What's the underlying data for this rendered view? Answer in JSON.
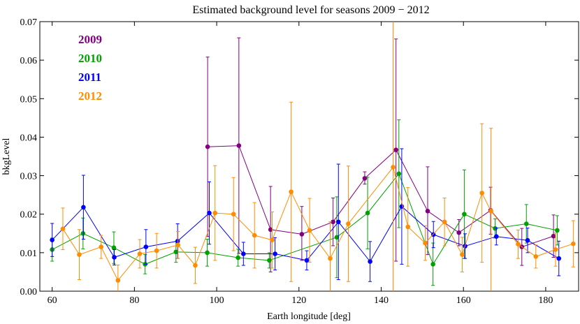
{
  "chart_data": {
    "type": "scatter",
    "title": "Estimated background level for seasons 2009 − 2012",
    "xlabel": "Earth longitude [deg]",
    "ylabel": "bkgLevel",
    "xlim": [
      57,
      188
    ],
    "ylim": [
      0,
      0.07
    ],
    "xticks": [
      60,
      80,
      100,
      120,
      140,
      160,
      180
    ],
    "yticks": [
      0.0,
      0.01,
      0.02,
      0.03,
      0.04,
      0.05,
      0.06,
      0.07
    ],
    "ytick_labels": [
      "0.00",
      "0.01",
      "0.02",
      "0.03",
      "0.04",
      "0.05",
      "0.06",
      "0.07"
    ],
    "grid": false,
    "legend_position": "top-left",
    "series": [
      {
        "name": "2009",
        "color": "#800080",
        "points": [
          {
            "x": 97.8,
            "y": 0.0375,
            "lo": 0.0142,
            "hi": 0.0608
          },
          {
            "x": 105.4,
            "y": 0.0378,
            "lo": 0.0098,
            "hi": 0.0658
          },
          {
            "x": 113.1,
            "y": 0.016,
            "lo": 0.005,
            "hi": 0.0272
          },
          {
            "x": 120.7,
            "y": 0.0148,
            "lo": 0.008,
            "hi": 0.022
          },
          {
            "x": 128.3,
            "y": 0.018,
            "lo": 0.0118,
            "hi": 0.0242
          },
          {
            "x": 136.0,
            "y": 0.0293,
            "lo": 0.0278,
            "hi": 0.031
          },
          {
            "x": 143.6,
            "y": 0.0367,
            "lo": 0.0078,
            "hi": 0.0655
          },
          {
            "x": 151.3,
            "y": 0.0208,
            "lo": 0.0095,
            "hi": 0.0323
          },
          {
            "x": 158.9,
            "y": 0.0152,
            "lo": 0.0118,
            "hi": 0.0186
          },
          {
            "x": 166.6,
            "y": 0.021,
            "lo": 0.0148,
            "hi": 0.027
          },
          {
            "x": 174.2,
            "y": 0.0115,
            "lo": 0.0067,
            "hi": 0.0163
          },
          {
            "x": 181.9,
            "y": 0.0143,
            "lo": 0.0088,
            "hi": 0.0198
          }
        ]
      },
      {
        "name": "2010",
        "color": "#00a000",
        "points": [
          {
            "x": 60.0,
            "y": 0.0108,
            "lo": 0.0078,
            "hi": 0.0138
          },
          {
            "x": 67.5,
            "y": 0.015,
            "lo": 0.011,
            "hi": 0.019
          },
          {
            "x": 75.0,
            "y": 0.0113,
            "lo": 0.0072,
            "hi": 0.0154
          },
          {
            "x": 82.6,
            "y": 0.007,
            "lo": 0.0045,
            "hi": 0.0095
          },
          {
            "x": 90.1,
            "y": 0.0102,
            "lo": 0.0075,
            "hi": 0.0129
          },
          {
            "x": 97.7,
            "y": 0.01,
            "lo": 0.0065,
            "hi": 0.0135
          },
          {
            "x": 105.2,
            "y": 0.0087,
            "lo": 0.0065,
            "hi": 0.0109
          },
          {
            "x": 112.8,
            "y": 0.008,
            "lo": 0.006,
            "hi": 0.01
          },
          {
            "x": 129.2,
            "y": 0.014,
            "lo": 0.0035,
            "hi": 0.0245
          },
          {
            "x": 136.7,
            "y": 0.0203,
            "lo": 0.011,
            "hi": 0.0296
          },
          {
            "x": 144.3,
            "y": 0.0305,
            "lo": 0.0165,
            "hi": 0.0445
          },
          {
            "x": 152.6,
            "y": 0.007,
            "lo": 0.0015,
            "hi": 0.0125
          },
          {
            "x": 160.2,
            "y": 0.02,
            "lo": 0.0085,
            "hi": 0.0315
          },
          {
            "x": 167.7,
            "y": 0.0163,
            "lo": 0.0138,
            "hi": 0.0188
          },
          {
            "x": 175.3,
            "y": 0.0175,
            "lo": 0.0125,
            "hi": 0.0225
          },
          {
            "x": 182.8,
            "y": 0.0158,
            "lo": 0.012,
            "hi": 0.0196
          }
        ]
      },
      {
        "name": "2011",
        "color": "#0000ff",
        "points": [
          {
            "x": 60.0,
            "y": 0.0133,
            "lo": 0.009,
            "hi": 0.0176
          },
          {
            "x": 67.6,
            "y": 0.0218,
            "lo": 0.0135,
            "hi": 0.0301
          },
          {
            "x": 75.1,
            "y": 0.0088,
            "lo": 0.0068,
            "hi": 0.0108
          },
          {
            "x": 82.8,
            "y": 0.0115,
            "lo": 0.007,
            "hi": 0.016
          },
          {
            "x": 90.5,
            "y": 0.013,
            "lo": 0.0085,
            "hi": 0.0175
          },
          {
            "x": 98.2,
            "y": 0.0203,
            "lo": 0.0122,
            "hi": 0.0284
          },
          {
            "x": 106.5,
            "y": 0.0097,
            "lo": 0.0067,
            "hi": 0.0127
          },
          {
            "x": 114.2,
            "y": 0.0097,
            "lo": 0.0055,
            "hi": 0.0139
          },
          {
            "x": 121.9,
            "y": 0.008,
            "lo": 0.0055,
            "hi": 0.0105
          },
          {
            "x": 129.6,
            "y": 0.018,
            "lo": 0.003,
            "hi": 0.033
          },
          {
            "x": 137.3,
            "y": 0.0077,
            "lo": 0.0025,
            "hi": 0.0129
          },
          {
            "x": 145.0,
            "y": 0.022,
            "lo": 0.007,
            "hi": 0.037
          },
          {
            "x": 152.7,
            "y": 0.0147,
            "lo": 0.0113,
            "hi": 0.0181
          },
          {
            "x": 160.4,
            "y": 0.0117,
            "lo": 0.0085,
            "hi": 0.0149
          },
          {
            "x": 168.0,
            "y": 0.0142,
            "lo": 0.012,
            "hi": 0.0164
          },
          {
            "x": 175.6,
            "y": 0.0132,
            "lo": 0.01,
            "hi": 0.0164
          },
          {
            "x": 183.2,
            "y": 0.0085,
            "lo": 0.004,
            "hi": 0.013
          }
        ]
      },
      {
        "name": "2012",
        "color": "#ff8c00",
        "points": [
          {
            "x": 62.6,
            "y": 0.0162,
            "lo": 0.0108,
            "hi": 0.0216
          },
          {
            "x": 66.6,
            "y": 0.0095,
            "lo": 0.003,
            "hi": 0.016
          },
          {
            "x": 71.9,
            "y": 0.0115,
            "lo": 0.0085,
            "hi": 0.0145
          },
          {
            "x": 76.0,
            "y": 0.0028,
            "lo": 0.0,
            "hi": 0.0068
          },
          {
            "x": 81.3,
            "y": 0.0097,
            "lo": 0.006,
            "hi": 0.0134
          },
          {
            "x": 85.4,
            "y": 0.0105,
            "lo": 0.006,
            "hi": 0.015
          },
          {
            "x": 90.6,
            "y": 0.012,
            "lo": 0.0085,
            "hi": 0.0155
          },
          {
            "x": 94.8,
            "y": 0.0067,
            "lo": 0.002,
            "hi": 0.0114
          },
          {
            "x": 99.6,
            "y": 0.0203,
            "lo": 0.008,
            "hi": 0.0326
          },
          {
            "x": 104.1,
            "y": 0.02,
            "lo": 0.0105,
            "hi": 0.0295
          },
          {
            "x": 109.2,
            "y": 0.0145,
            "lo": 0.006,
            "hi": 0.023
          },
          {
            "x": 113.5,
            "y": 0.0133,
            "lo": 0.006,
            "hi": 0.0206
          },
          {
            "x": 118.1,
            "y": 0.0258,
            "lo": 0.0025,
            "hi": 0.0491
          },
          {
            "x": 122.6,
            "y": 0.0158,
            "lo": 0.0075,
            "hi": 0.0241
          },
          {
            "x": 127.6,
            "y": 0.0085,
            "lo": 0.0,
            "hi": 0.018
          },
          {
            "x": 132.0,
            "y": 0.0175,
            "lo": 0.0025,
            "hi": 0.0325
          },
          {
            "x": 142.9,
            "y": 0.0322,
            "lo": 0.0,
            "hi": 0.07
          },
          {
            "x": 146.5,
            "y": 0.0167,
            "lo": 0.0065,
            "hi": 0.0269
          },
          {
            "x": 150.7,
            "y": 0.0125,
            "lo": 0.008,
            "hi": 0.017
          },
          {
            "x": 155.4,
            "y": 0.018,
            "lo": 0.0118,
            "hi": 0.0242
          },
          {
            "x": 159.7,
            "y": 0.0095,
            "lo": 0.005,
            "hi": 0.014
          },
          {
            "x": 164.5,
            "y": 0.0255,
            "lo": 0.0075,
            "hi": 0.0435
          },
          {
            "x": 166.7,
            "y": 0.0208,
            "lo": 0.0,
            "hi": 0.0423
          },
          {
            "x": 173.3,
            "y": 0.0122,
            "lo": 0.0085,
            "hi": 0.0159
          },
          {
            "x": 177.6,
            "y": 0.009,
            "lo": 0.006,
            "hi": 0.012
          },
          {
            "x": 182.4,
            "y": 0.0108,
            "lo": 0.0065,
            "hi": 0.0151
          },
          {
            "x": 186.7,
            "y": 0.0123,
            "lo": 0.0063,
            "hi": 0.0183
          }
        ]
      }
    ]
  }
}
